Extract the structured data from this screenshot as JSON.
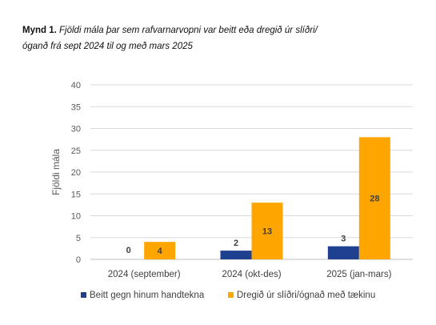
{
  "caption": {
    "lead": "Mynd 1.",
    "line1": "Fjöldi mála þar sem rafvarnarvopni var beitt eða dregið úr slíðri/",
    "line2": "óganð frá sept 2024 til og með mars 2025"
  },
  "chart_data": {
    "type": "bar",
    "categories": [
      "2024 (september)",
      "2024 (okt-des)",
      "2025 (jan-mars)"
    ],
    "series": [
      {
        "name": "Beitt gegn hinum handtekna",
        "values": [
          0,
          2,
          3
        ],
        "color": "#1f3f8f"
      },
      {
        "name": "Dregið úr slíðri/ógnað með tækinu",
        "values": [
          4,
          13,
          28
        ],
        "color": "#ffa500"
      }
    ],
    "ylabel": "Fjöldi mála",
    "xlabel": "",
    "ylim": [
      0,
      40
    ],
    "yticks": [
      0,
      5,
      10,
      15,
      20,
      25,
      30,
      35,
      40
    ],
    "grid": true,
    "legend": "bottom",
    "data_labels": true
  }
}
